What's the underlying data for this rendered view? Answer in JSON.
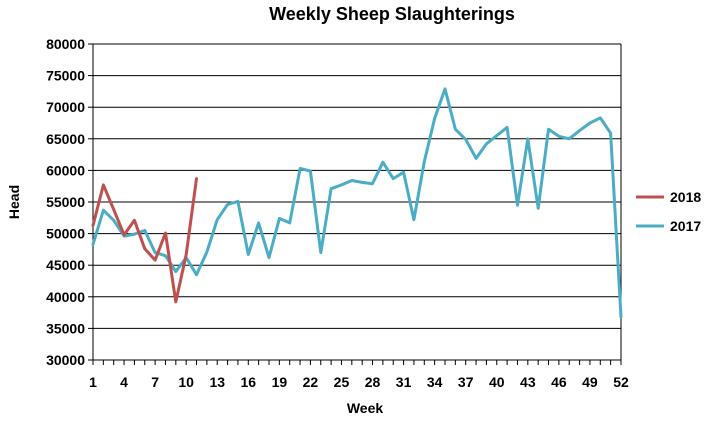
{
  "chart_data": {
    "type": "line",
    "title": "Weekly Sheep Slaughterings",
    "xlabel": "Week",
    "ylabel": "Head",
    "xlim": [
      1,
      52
    ],
    "ylim": [
      30000,
      80000
    ],
    "y_ticks": [
      30000,
      35000,
      40000,
      45000,
      50000,
      55000,
      60000,
      65000,
      70000,
      75000,
      80000
    ],
    "x_ticks": [
      1,
      4,
      7,
      10,
      13,
      16,
      19,
      22,
      25,
      28,
      31,
      34,
      37,
      40,
      43,
      46,
      49,
      52
    ],
    "grid": "horizontal",
    "legend_position": "right",
    "series": [
      {
        "name": "2018",
        "color": "#c0504d",
        "x": [
          1,
          2,
          3,
          4,
          5,
          6,
          7,
          8,
          9,
          10,
          11
        ],
        "values": [
          51300,
          57700,
          53800,
          49800,
          52100,
          47600,
          45800,
          50100,
          39200,
          46700,
          58700
        ]
      },
      {
        "name": "2017",
        "color": "#4bacc6",
        "x": [
          1,
          2,
          3,
          4,
          5,
          6,
          7,
          8,
          9,
          10,
          11,
          12,
          13,
          14,
          15,
          16,
          17,
          18,
          19,
          20,
          21,
          22,
          23,
          24,
          25,
          26,
          27,
          28,
          29,
          30,
          31,
          32,
          33,
          34,
          35,
          36,
          37,
          38,
          39,
          40,
          41,
          42,
          43,
          44,
          45,
          46,
          47,
          48,
          49,
          50,
          51,
          52
        ],
        "values": [
          48300,
          53700,
          52100,
          49600,
          49900,
          50500,
          47000,
          46500,
          44000,
          46200,
          43500,
          47100,
          52200,
          54600,
          55100,
          46700,
          51700,
          46200,
          52400,
          51700,
          60300,
          59900,
          47000,
          57100,
          57700,
          58400,
          58100,
          57900,
          61300,
          58700,
          59700,
          52200,
          61400,
          68200,
          72900,
          66500,
          64900,
          61900,
          64200,
          65500,
          66800,
          54500,
          65000,
          54000,
          66500,
          65400,
          65000,
          66300,
          67500,
          68300,
          65900,
          36800
        ]
      }
    ]
  }
}
